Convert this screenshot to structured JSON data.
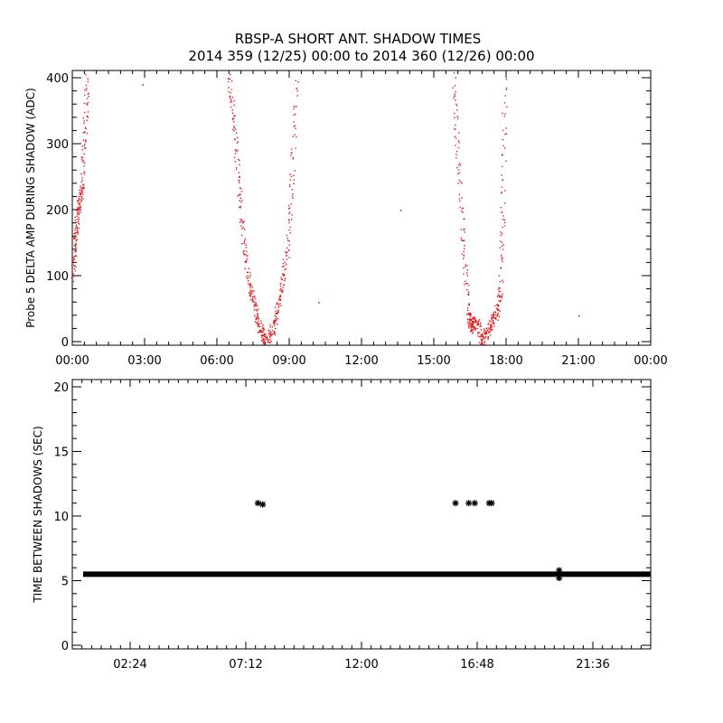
{
  "title_line1": "RBSP-A SHORT ANT. SHADOW TIMES",
  "title_line2": "2014 359 (12/25) 00:00 to 2014 360 (12/26) 00:00",
  "colors": {
    "red_series": "#e31a1c",
    "black_series": "#000000"
  },
  "chart_data": [
    {
      "type": "scatter",
      "ylabel": "Probe 5 DELTA AMP DURING SHADOW (ADC)",
      "xlim": [
        0,
        24
      ],
      "ylim": [
        0,
        400
      ],
      "x_unit": "hours",
      "xticks": [
        0,
        3,
        6,
        9,
        12,
        15,
        18,
        21,
        24
      ],
      "xtick_labels": [
        "00:00",
        "03:00",
        "06:00",
        "09:00",
        "12:00",
        "15:00",
        "18:00",
        "21:00",
        "00:00"
      ],
      "yticks": [
        0,
        100,
        200,
        300,
        400
      ],
      "ytick_labels": [
        "0",
        "100",
        "200",
        "300",
        "400"
      ],
      "marker": "dot",
      "color": "#e31a1c",
      "segments": [
        {
          "x": [
            0.0,
            0.1,
            0.2,
            0.3,
            0.4,
            0.5,
            0.6
          ],
          "y": [
            100,
            150,
            190,
            215,
            240,
            320,
            400
          ]
        },
        {
          "x": [
            6.5,
            6.7,
            6.9,
            7.1,
            7.3,
            7.5,
            7.7,
            7.9,
            8.0
          ],
          "y": [
            400,
            330,
            230,
            150,
            90,
            60,
            30,
            10,
            0
          ]
        },
        {
          "x": [
            8.1,
            8.3,
            8.5,
            8.7,
            8.9,
            9.1,
            9.3
          ],
          "y": [
            0,
            20,
            50,
            90,
            140,
            250,
            400
          ]
        },
        {
          "x": [
            15.8,
            16.0,
            16.2,
            16.4,
            16.5,
            16.6,
            16.8,
            17.0
          ],
          "y": [
            400,
            280,
            150,
            50,
            20,
            30,
            25,
            0
          ]
        },
        {
          "x": [
            17.0,
            17.2,
            17.4,
            17.6,
            17.75,
            17.85,
            17.95
          ],
          "y": [
            0,
            15,
            30,
            45,
            80,
            200,
            400
          ]
        }
      ],
      "isolated_points": [
        {
          "x": 2.9,
          "y": 390
        },
        {
          "x": 13.6,
          "y": 200
        },
        {
          "x": 10.2,
          "y": 60
        },
        {
          "x": 21.0,
          "y": 40
        }
      ]
    },
    {
      "type": "scatter",
      "ylabel": "TIME BETWEEN SHADOWS (SEC)",
      "xlim": [
        0,
        24
      ],
      "ylim": [
        0,
        20
      ],
      "x_unit": "hours",
      "xticks": [
        2.4,
        7.2,
        12.0,
        16.8,
        21.6
      ],
      "xtick_labels": [
        "02:24",
        "07:12",
        "12:00",
        "16:48",
        "21:36"
      ],
      "yticks": [
        0,
        5,
        10,
        15,
        20
      ],
      "ytick_labels": [
        "0",
        "5",
        "10",
        "15",
        "20"
      ],
      "marker": "asterisk",
      "color": "#000000",
      "baseline": {
        "y": 5.5,
        "x_start": 0.0,
        "x_end": 24.0
      },
      "points": [
        {
          "x": 7.7,
          "y": 11.0
        },
        {
          "x": 7.9,
          "y": 10.9
        },
        {
          "x": 15.9,
          "y": 11.0
        },
        {
          "x": 16.45,
          "y": 11.0
        },
        {
          "x": 16.7,
          "y": 11.0
        },
        {
          "x": 17.3,
          "y": 11.0
        },
        {
          "x": 17.4,
          "y": 11.0
        },
        {
          "x": 20.2,
          "y": 5.8
        },
        {
          "x": 20.2,
          "y": 5.2
        }
      ]
    }
  ]
}
